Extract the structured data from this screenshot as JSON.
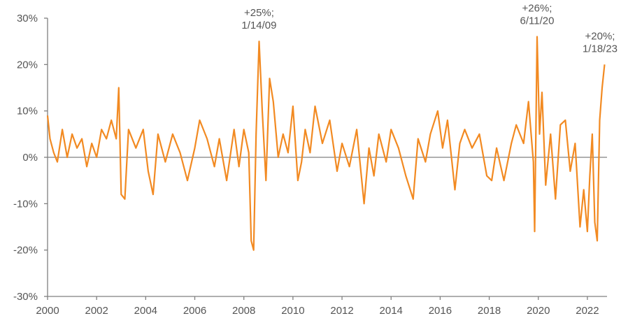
{
  "chart_data": {
    "type": "line",
    "title": "",
    "xlabel": "",
    "ylabel": "",
    "xlim": [
      2000,
      2022.8
    ],
    "ylim": [
      -30,
      30
    ],
    "grid": false,
    "legend": "none",
    "x_ticks": [
      2000,
      2002,
      2004,
      2006,
      2008,
      2010,
      2012,
      2014,
      2016,
      2018,
      2020,
      2022
    ],
    "x_tick_labels": [
      "2000",
      "2002",
      "2004",
      "2006",
      "2008",
      "2010",
      "2012",
      "2014",
      "2016",
      "2018",
      "2020",
      "2022"
    ],
    "y_ticks": [
      30,
      20,
      10,
      0,
      -10,
      -20,
      -30
    ],
    "y_tick_labels": [
      "30%",
      "20%",
      "10%",
      "0%",
      "-10%",
      "-20%",
      "-30%"
    ],
    "series": [
      {
        "color": "#f28a22",
        "x": [
          2000.0,
          2000.1,
          2000.25,
          2000.4,
          2000.6,
          2000.8,
          2001.0,
          2001.2,
          2001.4,
          2001.6,
          2001.8,
          2002.0,
          2002.2,
          2002.4,
          2002.6,
          2002.8,
          2002.9,
          2003.0,
          2003.15,
          2003.3,
          2003.6,
          2003.9,
          2004.1,
          2004.3,
          2004.5,
          2004.8,
          2005.1,
          2005.4,
          2005.7,
          2006.0,
          2006.2,
          2006.5,
          2006.8,
          2007.0,
          2007.3,
          2007.6,
          2007.8,
          2008.0,
          2008.2,
          2008.3,
          2008.4,
          2008.5,
          2008.62,
          2008.75,
          2008.9,
          2009.05,
          2009.2,
          2009.4,
          2009.6,
          2009.8,
          2010.0,
          2010.2,
          2010.35,
          2010.5,
          2010.7,
          2010.9,
          2011.2,
          2011.5,
          2011.8,
          2012.0,
          2012.3,
          2012.6,
          2012.9,
          2013.1,
          2013.3,
          2013.5,
          2013.8,
          2014.0,
          2014.3,
          2014.6,
          2014.9,
          2015.1,
          2015.4,
          2015.6,
          2015.9,
          2016.1,
          2016.3,
          2016.6,
          2016.8,
          2017.0,
          2017.3,
          2017.6,
          2017.9,
          2018.1,
          2018.3,
          2018.6,
          2018.9,
          2019.1,
          2019.4,
          2019.6,
          2019.8,
          2019.85,
          2019.95,
          2020.05,
          2020.15,
          2020.3,
          2020.5,
          2020.7,
          2020.9,
          2021.1,
          2021.3,
          2021.5,
          2021.7,
          2021.85,
          2022.0,
          2022.1,
          2022.2,
          2022.3,
          2022.4,
          2022.5,
          2022.6,
          2022.7
        ],
        "values": [
          9,
          4,
          1,
          -1,
          6,
          0,
          5,
          2,
          4,
          -2,
          3,
          0,
          6,
          4,
          8,
          4,
          15,
          -8,
          -9,
          6,
          2,
          6,
          -3,
          -8,
          5,
          -1,
          5,
          1,
          -5,
          2,
          8,
          4,
          -2,
          4,
          -5,
          6,
          -2,
          6,
          1,
          -18,
          -20,
          5,
          25,
          10,
          -5,
          17,
          12,
          0,
          5,
          1,
          11,
          -5,
          -1,
          6,
          1,
          11,
          3,
          8,
          -3,
          3,
          -2,
          6,
          -10,
          2,
          -4,
          5,
          -1,
          6,
          2,
          -4,
          -9,
          4,
          -1,
          5,
          10,
          2,
          8,
          -7,
          3,
          6,
          2,
          5,
          -4,
          -5,
          2,
          -5,
          3,
          7,
          3,
          12,
          -1,
          -16,
          26,
          5,
          14,
          -6,
          5,
          -9,
          7,
          8,
          -3,
          3,
          -15,
          -7,
          -16,
          -4,
          5,
          -14,
          -18,
          8,
          15,
          20
        ]
      }
    ],
    "annotations": [
      {
        "x": 2008.62,
        "y": 25,
        "lines": [
          "+25%;",
          "1/14/09"
        ]
      },
      {
        "x": 2019.95,
        "y": 26,
        "lines": [
          "+26%;",
          "6/11/20"
        ]
      },
      {
        "x": 2022.7,
        "y": 20,
        "lines": [
          "+20%;",
          "1/18/23"
        ]
      }
    ]
  }
}
